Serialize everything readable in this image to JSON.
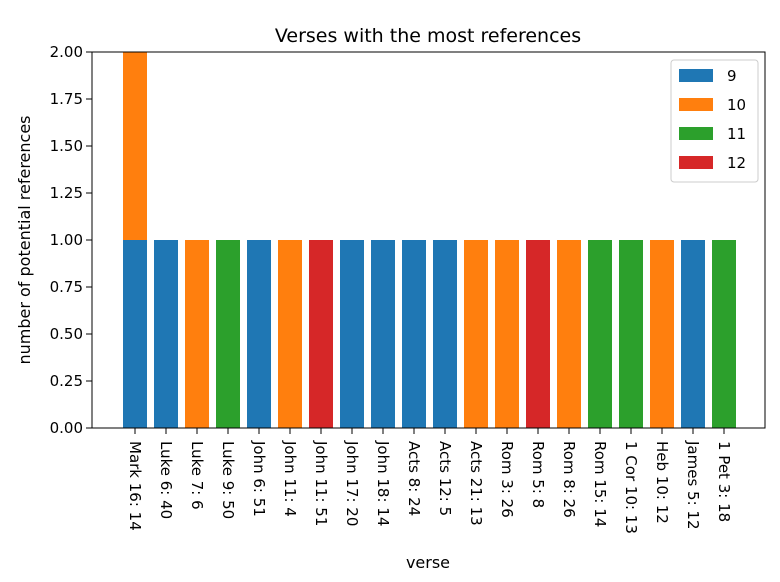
{
  "chart_data": {
    "type": "bar",
    "stacked": true,
    "title": "Verses with the most references",
    "xlabel": "verse",
    "ylabel": "number of potential references",
    "ylim": [
      0,
      2
    ],
    "yticks": [
      "0.00",
      "0.25",
      "0.50",
      "0.75",
      "1.00",
      "1.25",
      "1.50",
      "1.75",
      "2.00"
    ],
    "grid": false,
    "legend_position": "top-right",
    "categories": [
      "Mark 16: 14",
      "Luke 6: 40",
      "Luke 7: 6",
      "Luke 9: 50",
      "John 6: 51",
      "John 11: 4",
      "John 11: 51",
      "John 17: 20",
      "John 18: 14",
      "Acts 8: 24",
      "Acts 12: 5",
      "Acts 21: 13",
      "Rom 3: 26",
      "Rom 5: 8",
      "Rom 8: 26",
      "Rom 15: 14",
      "1 Cor 10: 13",
      "Heb 10: 12",
      "James 5: 12",
      "1 Pet 3: 18"
    ],
    "series": [
      {
        "name": "9",
        "color": "#1f77b4",
        "values": [
          1,
          1,
          0,
          0,
          1,
          0,
          0,
          1,
          1,
          1,
          1,
          0,
          0,
          0,
          0,
          0,
          0,
          0,
          1,
          0
        ]
      },
      {
        "name": "10",
        "color": "#ff7f0e",
        "values": [
          1,
          0,
          1,
          0,
          0,
          1,
          0,
          0,
          0,
          0,
          0,
          1,
          1,
          0,
          1,
          0,
          0,
          1,
          0,
          0
        ]
      },
      {
        "name": "11",
        "color": "#2ca02c",
        "values": [
          0,
          0,
          0,
          1,
          0,
          0,
          0,
          0,
          0,
          0,
          0,
          0,
          0,
          0,
          0,
          1,
          1,
          0,
          0,
          1
        ]
      },
      {
        "name": "12",
        "color": "#d62728",
        "values": [
          0,
          0,
          0,
          0,
          0,
          0,
          1,
          0,
          0,
          0,
          0,
          0,
          0,
          1,
          0,
          0,
          0,
          0,
          0,
          0
        ]
      }
    ]
  }
}
